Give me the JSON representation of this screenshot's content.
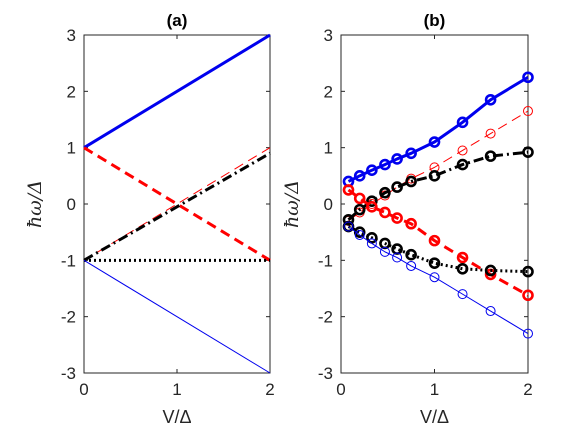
{
  "chart_data": [
    {
      "type": "line",
      "title": "(a)",
      "xlabel": "V/Δ",
      "ylabel": "ħω/Δ",
      "xlim": [
        0,
        2
      ],
      "ylim": [
        -3,
        3
      ],
      "xticks": [
        "0",
        "1",
        "2"
      ],
      "yticks": [
        "-3",
        "-2",
        "-1",
        "0",
        "1",
        "2",
        "3"
      ],
      "grid": false,
      "series": [
        {
          "color": "#0000ee",
          "style": "solid",
          "weight": "thick",
          "x": [
            0,
            2
          ],
          "y": [
            1,
            3
          ]
        },
        {
          "color": "#ff0000",
          "style": "dashed",
          "weight": "thin",
          "x": [
            0,
            2
          ],
          "y": [
            -1,
            1
          ]
        },
        {
          "color": "#ff0000",
          "style": "dashed",
          "weight": "thick",
          "x": [
            0,
            2
          ],
          "y": [
            1,
            -1
          ]
        },
        {
          "color": "#000000",
          "style": "dashdot",
          "weight": "thick",
          "x": [
            0,
            2
          ],
          "y": [
            -1,
            0.9
          ]
        },
        {
          "color": "#000000",
          "style": "dotted",
          "weight": "thick",
          "x": [
            0,
            2
          ],
          "y": [
            -1,
            -1
          ]
        },
        {
          "color": "#0000ee",
          "style": "solid",
          "weight": "thin",
          "x": [
            0,
            2
          ],
          "y": [
            -1,
            -3
          ]
        }
      ]
    },
    {
      "type": "line",
      "title": "(b)",
      "xlabel": "V/Δ",
      "ylabel": "ħω/Δ",
      "xlim": [
        0,
        2
      ],
      "ylim": [
        -3,
        3
      ],
      "xticks": [
        "0",
        "1",
        "2"
      ],
      "yticks": [
        "-3",
        "-2",
        "-1",
        "0",
        "1",
        "2",
        "3"
      ],
      "grid": false,
      "series": [
        {
          "color": "#0000ee",
          "style": "solid",
          "weight": "thick",
          "x": [
            0.08,
            0.2,
            0.33,
            0.47,
            0.6,
            0.75,
            1.0,
            1.3,
            1.6,
            2.0
          ],
          "y": [
            0.4,
            0.5,
            0.6,
            0.7,
            0.8,
            0.9,
            1.1,
            1.45,
            1.85,
            2.25
          ]
        },
        {
          "color": "#ff0000",
          "style": "dashed",
          "weight": "thin",
          "x": [
            0.08,
            0.2,
            0.33,
            0.47,
            0.6,
            0.75,
            1.0,
            1.3,
            1.6,
            2.0
          ],
          "y": [
            -0.3,
            -0.15,
            0.0,
            0.15,
            0.3,
            0.45,
            0.65,
            0.95,
            1.25,
            1.65
          ]
        },
        {
          "color": "#000000",
          "style": "dashdot",
          "weight": "thick",
          "x": [
            0.08,
            0.2,
            0.33,
            0.47,
            0.6,
            0.75,
            1.0,
            1.3,
            1.6,
            2.0
          ],
          "y": [
            -0.28,
            -0.1,
            0.05,
            0.2,
            0.3,
            0.4,
            0.5,
            0.7,
            0.85,
            0.92
          ]
        },
        {
          "color": "#ff0000",
          "style": "dashed",
          "weight": "thick",
          "x": [
            0.08,
            0.2,
            0.33,
            0.47,
            0.6,
            0.75,
            1.0,
            1.3,
            1.6,
            2.0
          ],
          "y": [
            0.25,
            0.1,
            -0.05,
            -0.15,
            -0.25,
            -0.35,
            -0.65,
            -0.95,
            -1.25,
            -1.62
          ]
        },
        {
          "color": "#000000",
          "style": "dotted",
          "weight": "thick",
          "x": [
            0.08,
            0.2,
            0.33,
            0.47,
            0.6,
            0.75,
            1.0,
            1.3,
            1.6,
            2.0
          ],
          "y": [
            -0.4,
            -0.5,
            -0.6,
            -0.7,
            -0.8,
            -0.9,
            -1.05,
            -1.15,
            -1.18,
            -1.2
          ]
        },
        {
          "color": "#0000ee",
          "style": "solid",
          "weight": "thin",
          "x": [
            0.08,
            0.2,
            0.33,
            0.47,
            0.6,
            0.75,
            1.0,
            1.3,
            1.6,
            2.0
          ],
          "y": [
            -0.4,
            -0.55,
            -0.7,
            -0.85,
            -0.95,
            -1.1,
            -1.3,
            -1.6,
            -1.9,
            -2.3
          ]
        }
      ]
    }
  ]
}
